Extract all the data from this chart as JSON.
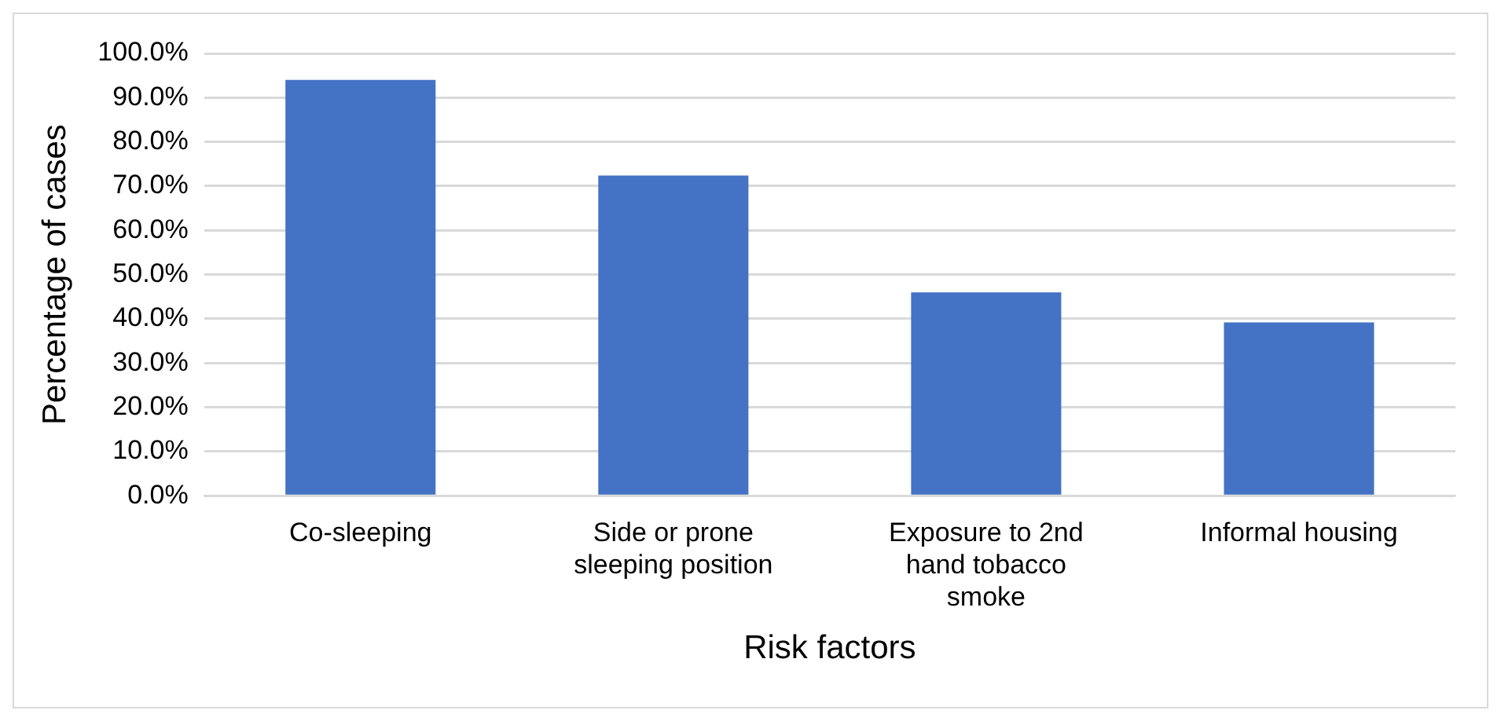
{
  "chart_data": {
    "type": "bar",
    "xlabel": "Risk factors",
    "ylabel": "Percentage of cases",
    "categories": [
      "Co-sleeping",
      "Side or prone sleeping position",
      "Exposure to 2nd hand tobacco smoke",
      "Informal housing"
    ],
    "values": [
      94.0,
      72.4,
      46.0,
      39.2
    ],
    "color": "#4472c4",
    "ylim": [
      0,
      100
    ],
    "yticks": [
      {
        "value": 0,
        "label": "0.0%"
      },
      {
        "value": 10,
        "label": "10.0%"
      },
      {
        "value": 20,
        "label": "20.0%"
      },
      {
        "value": 30,
        "label": "30.0%"
      },
      {
        "value": 40,
        "label": "40.0%"
      },
      {
        "value": 50,
        "label": "50.0%"
      },
      {
        "value": 60,
        "label": "60.0%"
      },
      {
        "value": 70,
        "label": "70.0%"
      },
      {
        "value": 80,
        "label": "80.0%"
      },
      {
        "value": 90,
        "label": "90.0%"
      },
      {
        "value": 100,
        "label": "100.0%"
      }
    ],
    "grid": "y"
  }
}
